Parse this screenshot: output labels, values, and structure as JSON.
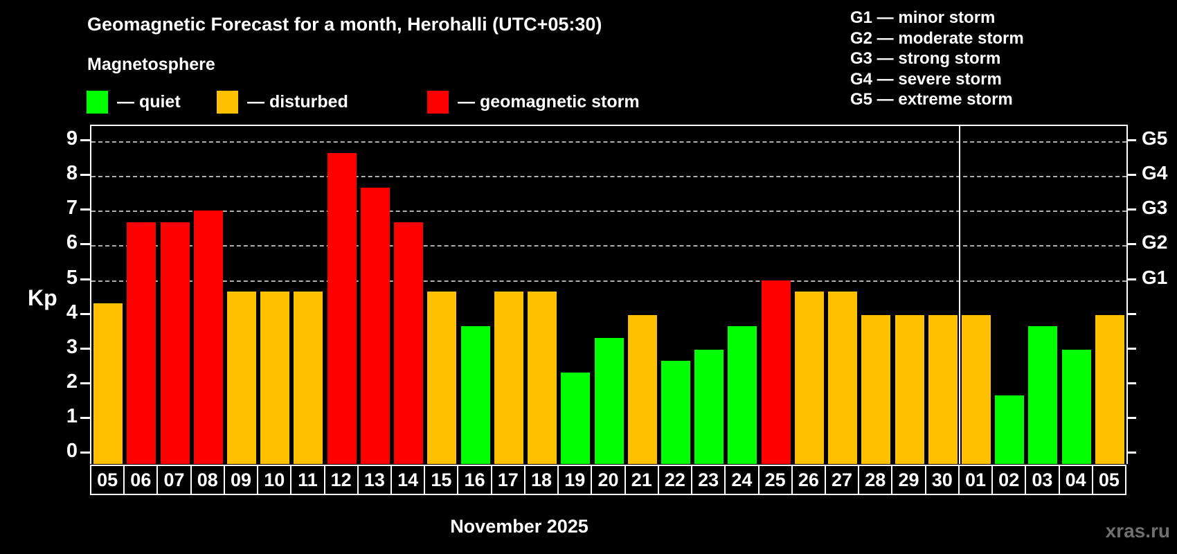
{
  "header": {
    "title": "Geomagnetic Forecast for a month, Herohalli (UTC+05:30)",
    "subtitle": "Magnetosphere"
  },
  "kp_legend": {
    "items": [
      {
        "key": "quiet",
        "label": "— quiet",
        "color": "#00ff00"
      },
      {
        "key": "disturbed",
        "label": "— disturbed",
        "color": "#ffc000"
      },
      {
        "key": "storm",
        "label": "— geomagnetic storm",
        "color": "#ff0000"
      }
    ]
  },
  "storm_scale_legend": {
    "lines": [
      "G1 — minor storm",
      "G2 — moderate storm",
      "G3 — strong storm",
      "G4 — severe storm",
      "G5 — extreme storm"
    ]
  },
  "footer": {
    "x_axis_title": "November 2025",
    "watermark": "xras.ru"
  },
  "chart_data": {
    "type": "bar",
    "title": "Geomagnetic Forecast for a month, Herohalli (UTC+05:30)",
    "ylabel": "Kp",
    "xlabel": "November 2025",
    "ylim": [
      0,
      9.45
    ],
    "yticks": [
      0,
      1,
      2,
      3,
      4,
      5,
      6,
      7,
      8,
      9
    ],
    "grid": "horizontal dashed gridlines at Kp 5 to 9 only",
    "gridlines_at": [
      5,
      6,
      7,
      8,
      9
    ],
    "gridline_color": "#b0b0b0",
    "legend_position": "top-left",
    "right_axis_labels": [
      {
        "kp": 5,
        "label": "G1"
      },
      {
        "kp": 6,
        "label": "G2"
      },
      {
        "kp": 7,
        "label": "G3"
      },
      {
        "kp": 8,
        "label": "G4"
      },
      {
        "kp": 9,
        "label": "G5"
      }
    ],
    "categories": [
      "05",
      "06",
      "07",
      "08",
      "09",
      "10",
      "11",
      "12",
      "13",
      "14",
      "15",
      "16",
      "17",
      "18",
      "19",
      "20",
      "21",
      "22",
      "23",
      "24",
      "25",
      "26",
      "27",
      "28",
      "29",
      "30",
      "01",
      "02",
      "03",
      "04",
      "05"
    ],
    "values": [
      4.33,
      6.67,
      6.67,
      7.0,
      4.67,
      4.67,
      4.67,
      8.67,
      7.67,
      6.67,
      4.67,
      3.67,
      4.67,
      4.67,
      2.33,
      3.33,
      4.0,
      2.67,
      3.0,
      3.67,
      5.0,
      4.67,
      4.67,
      4.0,
      4.0,
      4.0,
      4.0,
      1.67,
      3.67,
      3.0,
      4.0
    ],
    "levels": [
      "disturbed",
      "storm",
      "storm",
      "storm",
      "disturbed",
      "disturbed",
      "disturbed",
      "storm",
      "storm",
      "storm",
      "disturbed",
      "quiet",
      "disturbed",
      "disturbed",
      "quiet",
      "quiet",
      "disturbed",
      "quiet",
      "quiet",
      "quiet",
      "storm",
      "disturbed",
      "disturbed",
      "disturbed",
      "disturbed",
      "disturbed",
      "disturbed",
      "quiet",
      "quiet",
      "quiet",
      "disturbed"
    ],
    "level_colors": {
      "quiet": "#00ff00",
      "disturbed": "#ffc000",
      "storm": "#ff0000"
    },
    "month_separator_after_index": 25
  }
}
